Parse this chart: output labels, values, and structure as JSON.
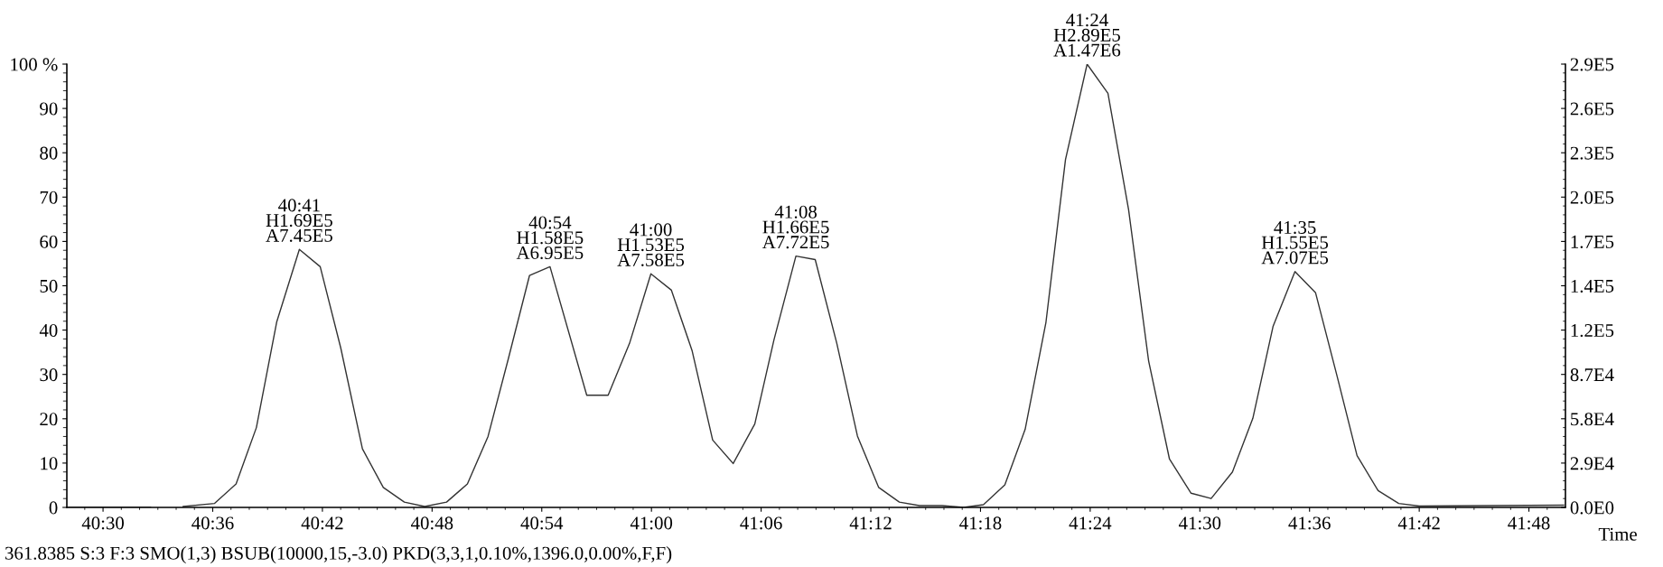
{
  "chart_data": {
    "type": "line",
    "xlabel": "Time",
    "x": [
      40.4678,
      40.5433,
      40.5582,
      40.573,
      40.6017,
      40.6213,
      40.6398,
      40.6583,
      40.679,
      40.698,
      40.7167,
      40.7365,
      40.7555,
      40.7747,
      40.7933,
      40.8132,
      40.8322,
      40.851,
      40.8697,
      40.8888,
      40.9075,
      40.941,
      40.9605,
      40.98,
      40.9995,
      41.0182,
      41.037,
      41.0558,
      41.0745,
      41.0942,
      41.1117,
      41.1317,
      41.1493,
      41.169,
      41.1878,
      41.2072,
      41.226,
      41.2443,
      41.265,
      41.2847,
      41.3027,
      41.3222,
      41.3407,
      41.3597,
      41.3775,
      41.3972,
      41.4162,
      41.435,
      41.4533,
      41.4723,
      41.492,
      41.5103,
      41.5297,
      41.5483,
      41.5668,
      41.5867,
      41.6055,
      41.625,
      41.6433,
      41.6625,
      41.6813,
      41.7,
      41.8317
    ],
    "series": [
      {
        "color": "#333333",
        "values": [
          0,
          0,
          null,
          0.2,
          0.9,
          5.3,
          18,
          41.8,
          58.2,
          54.3,
          36,
          13.2,
          4.5,
          1.2,
          0.2,
          1.2,
          5.3,
          16,
          33.7,
          52.3,
          54.3,
          25.3,
          25.3,
          37,
          52.7,
          49,
          35.4,
          15.2,
          9.9,
          18.8,
          37.8,
          56.7,
          55.9,
          37,
          16.1,
          4.5,
          1.2,
          0.4,
          0.4,
          0,
          0.6,
          5.1,
          17.6,
          41.8,
          78.5,
          100,
          93.4,
          67.2,
          33,
          10.9,
          3.2,
          2,
          8,
          20.1,
          40.9,
          53.2,
          48.4,
          29.7,
          11.7,
          3.8,
          0.9,
          0.3,
          0.5
        ]
      }
    ],
    "xlim": [
      40.467,
      41.8333
    ],
    "xticks": [
      {
        "value": 40.5,
        "label": "40:30"
      },
      {
        "value": 40.6,
        "label": "40:36"
      },
      {
        "value": 40.7,
        "label": "40:42"
      },
      {
        "value": 40.8,
        "label": "40:48"
      },
      {
        "value": 40.9,
        "label": "40:54"
      },
      {
        "value": 41.0,
        "label": "41:00"
      },
      {
        "value": 41.1,
        "label": "41:06"
      },
      {
        "value": 41.2,
        "label": "41:12"
      },
      {
        "value": 41.3,
        "label": "41:18"
      },
      {
        "value": 41.4,
        "label": "41:24"
      },
      {
        "value": 41.5,
        "label": "41:30"
      },
      {
        "value": 41.6,
        "label": "41:36"
      },
      {
        "value": 41.7,
        "label": "41:42"
      },
      {
        "value": 41.8,
        "label": "41:48"
      }
    ],
    "ylim": [
      0,
      100
    ],
    "yticks": [
      0,
      10,
      20,
      30,
      40,
      50,
      60,
      70,
      80,
      90,
      {
        "value": 100,
        "label": "100 %"
      }
    ],
    "y2lim": [
      0,
      290000
    ],
    "y2ticks": [
      {
        "value": 0,
        "label": "0.0E0"
      },
      {
        "value": 29000,
        "label": "2.9E4"
      },
      {
        "value": 58000,
        "label": "5.8E4"
      },
      {
        "value": 87000,
        "label": "8.7E4"
      },
      {
        "value": 116000,
        "label": "1.2E5"
      },
      {
        "value": 145000,
        "label": "1.4E5"
      },
      {
        "value": 174000,
        "label": "1.7E5"
      },
      {
        "value": 203000,
        "label": "2.0E5"
      },
      {
        "value": 232000,
        "label": "2.3E5"
      },
      {
        "value": 261000,
        "label": "2.6E5"
      },
      {
        "value": 290000,
        "label": "2.9E5"
      }
    ],
    "grid": false,
    "legend": false,
    "marker": "none",
    "line_style": "solid",
    "annotations": [
      {
        "text": "40:41\nH1.69E5\nA7.45E5",
        "x": 40.679,
        "y": 58.2
      },
      {
        "text": "40:54\nH1.58E5\nA6.95E5",
        "x": 40.9075,
        "y": 54.3
      },
      {
        "text": "41:00\nH1.53E5\nA7.58E5",
        "x": 40.9995,
        "y": 52.7
      },
      {
        "text": "41:08\nH1.66E5\nA7.72E5",
        "x": 41.1317,
        "y": 56.7
      },
      {
        "text": "41:24\nH2.89E5\nA1.47E6",
        "x": 41.3972,
        "y": 100
      },
      {
        "text": "41:35\nH1.55E5\nA7.07E5",
        "x": 41.5867,
        "y": 53.2
      },
      "361.8385 S:3 F:3 SMO(1,3) BSUB(10000,15,-3.0) PKD(3,3,1,0.10%,1396.0,0.00%,F,F)"
    ]
  }
}
